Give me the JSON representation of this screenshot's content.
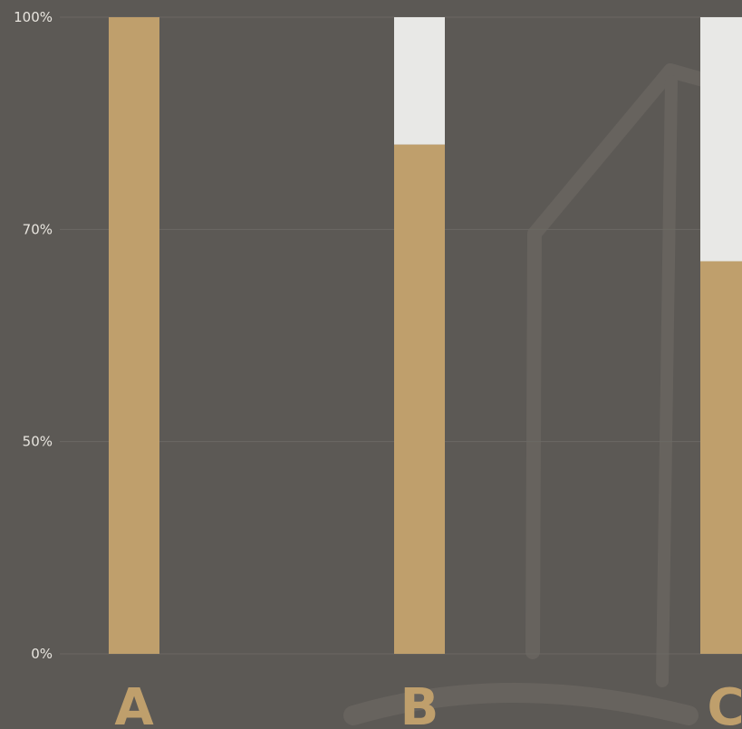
{
  "chart_data": {
    "type": "bar",
    "stacked": true,
    "categories": [
      "A",
      "B",
      "C"
    ],
    "series": [
      {
        "values": [
          100,
          82,
          67
        ],
        "color": "#bf9f6c"
      },
      {
        "values": [
          0,
          18,
          33
        ],
        "color": "#e8e8e6"
      }
    ],
    "y_ticks": [
      {
        "value": 100,
        "label": "100%"
      },
      {
        "value": 70,
        "label": "70%"
      },
      {
        "value": 50,
        "label": "50%"
      },
      {
        "value": 0,
        "label": "0%"
      }
    ],
    "ylim": [
      0,
      100
    ],
    "grid": true,
    "legend": "none",
    "colors": {
      "background": "#5c5955",
      "grid": "#6b6864",
      "tick_label": "#e8e5df",
      "category_label": "#bf9f6c",
      "watermark": "#67635e"
    }
  }
}
